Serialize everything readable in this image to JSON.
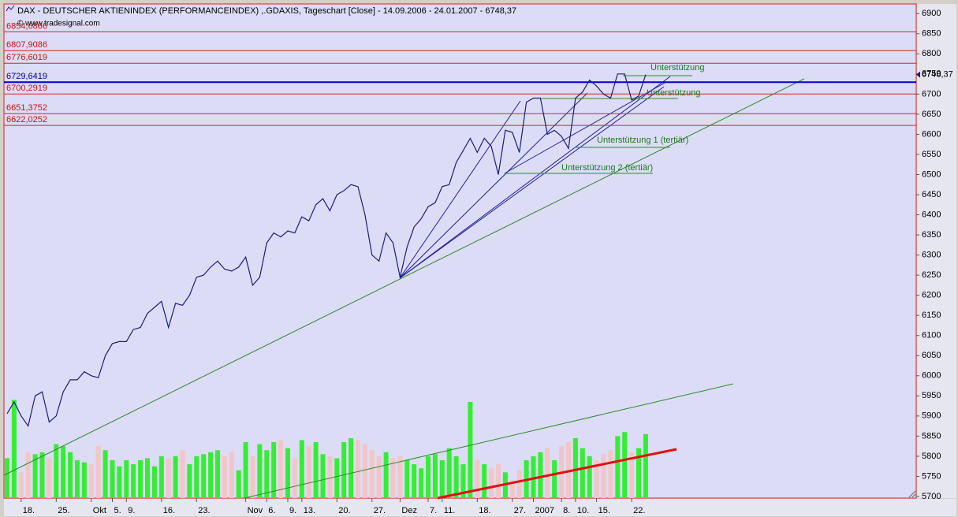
{
  "chart_data": {
    "type": "line",
    "title": "DAX  - DEUTSCHER AKTIENINDEX (PERFORMANCEINDEX) ,.GDAXIS, Tageschart [Close] - 14.09.2006 - 24.01.2007 - 6748,37",
    "copyright": "© www.tradesignal.com",
    "categories": [
      null,
      null,
      "18.",
      null,
      null,
      null,
      null,
      "25.",
      null,
      null,
      null,
      null,
      "Okt",
      null,
      null,
      "5.",
      null,
      "9.",
      null,
      null,
      null,
      null,
      "16.",
      null,
      null,
      null,
      null,
      "23.",
      null,
      null,
      null,
      null,
      null,
      null,
      "Nov",
      null,
      null,
      "6.",
      null,
      null,
      "9.",
      null,
      "13.",
      null,
      null,
      null,
      null,
      "20.",
      null,
      null,
      null,
      null,
      "27.",
      null,
      null,
      null,
      "Dez",
      null,
      null,
      null,
      "7.",
      null,
      "11.",
      null,
      null,
      null,
      null,
      "18.",
      null,
      null,
      null,
      null,
      "27.",
      null,
      null,
      "2007",
      null,
      null,
      null,
      "8.",
      null,
      "10.",
      null,
      null,
      "15.",
      null,
      null,
      null,
      null,
      "22.",
      null,
      null
    ],
    "series": [
      {
        "color": "#1c1c7c",
        "values": [
          5906,
          5935,
          5900,
          5875,
          5950,
          5960,
          5885,
          5900,
          5960,
          5990,
          5990,
          6010,
          6000,
          5995,
          6050,
          6080,
          6085,
          6085,
          6115,
          6120,
          6155,
          6170,
          6185,
          6120,
          6180,
          6175,
          6200,
          6245,
          6250,
          6270,
          6285,
          6265,
          6260,
          6270,
          6295,
          6225,
          6245,
          6330,
          6355,
          6345,
          6360,
          6355,
          6395,
          6385,
          6425,
          6440,
          6410,
          6450,
          6460,
          6475,
          6470,
          6400,
          6300,
          6285,
          6355,
          6330,
          6245,
          6320,
          6370,
          6390,
          6420,
          6430,
          6470,
          6475,
          6530,
          6560,
          6590,
          6555,
          6590,
          6570,
          6500,
          6610,
          6605,
          6555,
          6680,
          6690,
          6690,
          6600,
          6610,
          6595,
          6565,
          6690,
          6705,
          6735,
          6720,
          6700,
          6690,
          6750,
          6750,
          6685,
          6695,
          6748.37
        ]
      }
    ],
    "volume": {
      "up_color": "#33ee33",
      "down_color": "#f2c6c6",
      "values": [
        5795,
        5940,
        5760,
        5810,
        5805,
        5810,
        5795,
        5830,
        5825,
        5810,
        5790,
        5785,
        5780,
        5825,
        5815,
        5790,
        5775,
        5790,
        5780,
        5790,
        5795,
        5775,
        5800,
        5795,
        5800,
        5815,
        5780,
        5800,
        5805,
        5810,
        5815,
        5800,
        5810,
        5765,
        5835,
        5800,
        5830,
        5815,
        5835,
        5840,
        5820,
        5795,
        5840,
        5825,
        5835,
        5805,
        5800,
        5795,
        5835,
        5845,
        5840,
        5830,
        5815,
        5800,
        5810,
        5795,
        5800,
        5790,
        5780,
        5770,
        5800,
        5805,
        5790,
        5820,
        5800,
        5780,
        5935,
        5790,
        5780,
        5770,
        5780,
        5760,
        5740,
        5765,
        5790,
        5800,
        5810,
        5820,
        5790,
        5825,
        5835,
        5845,
        5820,
        5800,
        5790,
        5805,
        5815,
        5850,
        5860,
        5810,
        5820,
        5855
      ]
    },
    "ylim": [
      5696,
      6924
    ],
    "yticks": [
      5700,
      5750,
      5800,
      5850,
      5900,
      5950,
      6000,
      6050,
      6100,
      6150,
      6200,
      6250,
      6300,
      6350,
      6400,
      6450,
      6500,
      6550,
      6600,
      6650,
      6700,
      6750,
      6800,
      6850,
      6900
    ],
    "levels": [
      {
        "value": 6854.6866,
        "label": "6854,6866",
        "color": "#e02020"
      },
      {
        "value": 6807.9086,
        "label": "6807,9086",
        "color": "#e02020"
      },
      {
        "value": 6776.6019,
        "label": "6776,6019",
        "color": "#e02020"
      },
      {
        "value": 6729.6419,
        "label": "6729,6419",
        "color": "#0000cc"
      },
      {
        "value": 6700.2919,
        "label": "6700,2919",
        "color": "#e02020"
      },
      {
        "value": 6651.3752,
        "label": "6651,3752",
        "color": "#e02020"
      },
      {
        "value": 6622.0252,
        "label": "6622,0252",
        "color": "#e02020"
      }
    ],
    "last_value": {
      "value": 6748.37,
      "label": "6748,37"
    },
    "annotations": [
      "Unterstützung",
      "Unterstützung",
      "Unterstützung 1 (tertiär)",
      "Unterstützung 2 (tertiär)"
    ]
  }
}
